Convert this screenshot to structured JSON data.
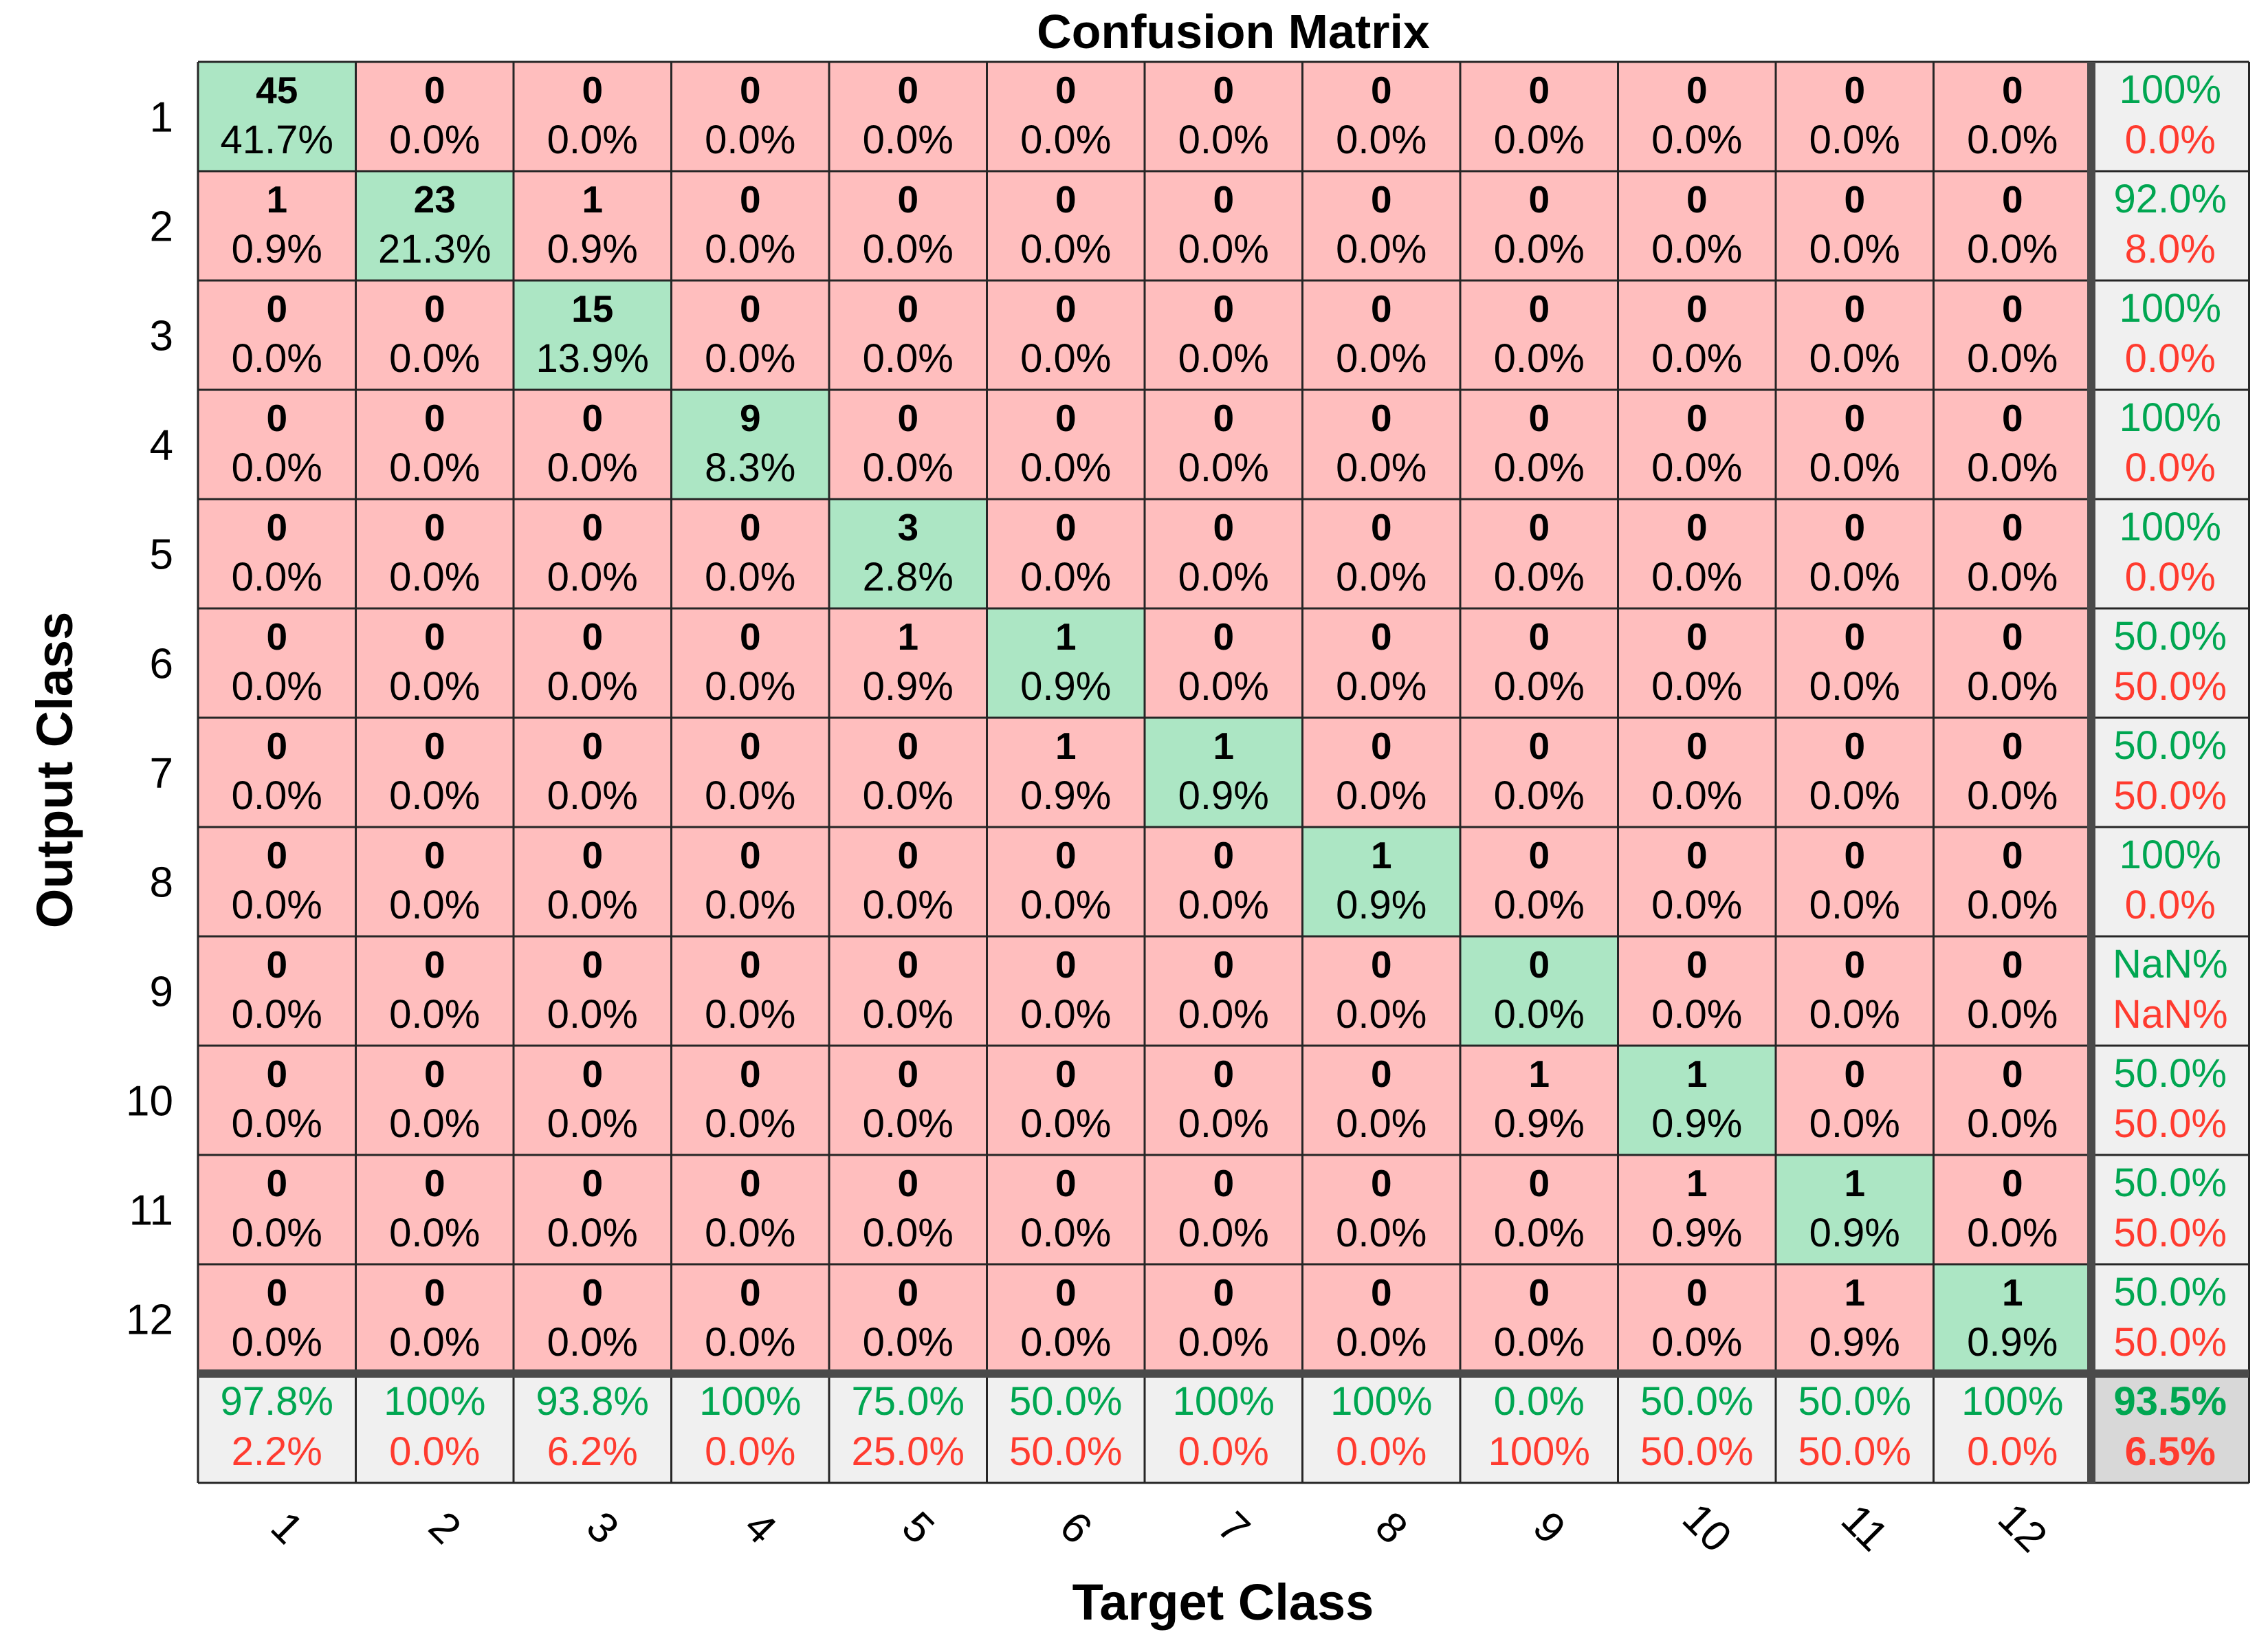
{
  "chart_data": {
    "type": "heatmap",
    "title": "Confusion Matrix",
    "xlabel": "Target Class",
    "ylabel": "Output Class",
    "row_labels": [
      "1",
      "2",
      "3",
      "4",
      "5",
      "6",
      "7",
      "8",
      "9",
      "10",
      "11",
      "12"
    ],
    "col_labels": [
      "1",
      "2",
      "3",
      "4",
      "5",
      "6",
      "7",
      "8",
      "9",
      "10",
      "11",
      "12"
    ],
    "counts": [
      [
        45,
        0,
        0,
        0,
        0,
        0,
        0,
        0,
        0,
        0,
        0,
        0
      ],
      [
        1,
        23,
        1,
        0,
        0,
        0,
        0,
        0,
        0,
        0,
        0,
        0
      ],
      [
        0,
        0,
        15,
        0,
        0,
        0,
        0,
        0,
        0,
        0,
        0,
        0
      ],
      [
        0,
        0,
        0,
        9,
        0,
        0,
        0,
        0,
        0,
        0,
        0,
        0
      ],
      [
        0,
        0,
        0,
        0,
        3,
        0,
        0,
        0,
        0,
        0,
        0,
        0
      ],
      [
        0,
        0,
        0,
        0,
        1,
        1,
        0,
        0,
        0,
        0,
        0,
        0
      ],
      [
        0,
        0,
        0,
        0,
        0,
        1,
        1,
        0,
        0,
        0,
        0,
        0
      ],
      [
        0,
        0,
        0,
        0,
        0,
        0,
        0,
        1,
        0,
        0,
        0,
        0
      ],
      [
        0,
        0,
        0,
        0,
        0,
        0,
        0,
        0,
        0,
        0,
        0,
        0
      ],
      [
        0,
        0,
        0,
        0,
        0,
        0,
        0,
        0,
        1,
        1,
        0,
        0
      ],
      [
        0,
        0,
        0,
        0,
        0,
        0,
        0,
        0,
        0,
        1,
        1,
        0
      ],
      [
        0,
        0,
        0,
        0,
        0,
        0,
        0,
        0,
        0,
        0,
        1,
        1
      ]
    ],
    "percents": [
      [
        "41.7%",
        "0.0%",
        "0.0%",
        "0.0%",
        "0.0%",
        "0.0%",
        "0.0%",
        "0.0%",
        "0.0%",
        "0.0%",
        "0.0%",
        "0.0%"
      ],
      [
        "0.9%",
        "21.3%",
        "0.9%",
        "0.0%",
        "0.0%",
        "0.0%",
        "0.0%",
        "0.0%",
        "0.0%",
        "0.0%",
        "0.0%",
        "0.0%"
      ],
      [
        "0.0%",
        "0.0%",
        "13.9%",
        "0.0%",
        "0.0%",
        "0.0%",
        "0.0%",
        "0.0%",
        "0.0%",
        "0.0%",
        "0.0%",
        "0.0%"
      ],
      [
        "0.0%",
        "0.0%",
        "0.0%",
        "8.3%",
        "0.0%",
        "0.0%",
        "0.0%",
        "0.0%",
        "0.0%",
        "0.0%",
        "0.0%",
        "0.0%"
      ],
      [
        "0.0%",
        "0.0%",
        "0.0%",
        "0.0%",
        "2.8%",
        "0.0%",
        "0.0%",
        "0.0%",
        "0.0%",
        "0.0%",
        "0.0%",
        "0.0%"
      ],
      [
        "0.0%",
        "0.0%",
        "0.0%",
        "0.0%",
        "0.9%",
        "0.9%",
        "0.0%",
        "0.0%",
        "0.0%",
        "0.0%",
        "0.0%",
        "0.0%"
      ],
      [
        "0.0%",
        "0.0%",
        "0.0%",
        "0.0%",
        "0.0%",
        "0.9%",
        "0.9%",
        "0.0%",
        "0.0%",
        "0.0%",
        "0.0%",
        "0.0%"
      ],
      [
        "0.0%",
        "0.0%",
        "0.0%",
        "0.0%",
        "0.0%",
        "0.0%",
        "0.0%",
        "0.9%",
        "0.0%",
        "0.0%",
        "0.0%",
        "0.0%"
      ],
      [
        "0.0%",
        "0.0%",
        "0.0%",
        "0.0%",
        "0.0%",
        "0.0%",
        "0.0%",
        "0.0%",
        "0.0%",
        "0.0%",
        "0.0%",
        "0.0%"
      ],
      [
        "0.0%",
        "0.0%",
        "0.0%",
        "0.0%",
        "0.0%",
        "0.0%",
        "0.0%",
        "0.0%",
        "0.9%",
        "0.9%",
        "0.0%",
        "0.0%"
      ],
      [
        "0.0%",
        "0.0%",
        "0.0%",
        "0.0%",
        "0.0%",
        "0.0%",
        "0.0%",
        "0.0%",
        "0.0%",
        "0.9%",
        "0.9%",
        "0.0%"
      ],
      [
        "0.0%",
        "0.0%",
        "0.0%",
        "0.0%",
        "0.0%",
        "0.0%",
        "0.0%",
        "0.0%",
        "0.0%",
        "0.0%",
        "0.9%",
        "0.9%"
      ]
    ],
    "row_summary": [
      {
        "correct": "100%",
        "error": "0.0%"
      },
      {
        "correct": "92.0%",
        "error": "8.0%"
      },
      {
        "correct": "100%",
        "error": "0.0%"
      },
      {
        "correct": "100%",
        "error": "0.0%"
      },
      {
        "correct": "100%",
        "error": "0.0%"
      },
      {
        "correct": "50.0%",
        "error": "50.0%"
      },
      {
        "correct": "50.0%",
        "error": "50.0%"
      },
      {
        "correct": "100%",
        "error": "0.0%"
      },
      {
        "correct": "NaN%",
        "error": "NaN%"
      },
      {
        "correct": "50.0%",
        "error": "50.0%"
      },
      {
        "correct": "50.0%",
        "error": "50.0%"
      },
      {
        "correct": "50.0%",
        "error": "50.0%"
      }
    ],
    "col_summary": [
      {
        "correct": "97.8%",
        "error": "2.2%"
      },
      {
        "correct": "100%",
        "error": "0.0%"
      },
      {
        "correct": "93.8%",
        "error": "6.2%"
      },
      {
        "correct": "100%",
        "error": "0.0%"
      },
      {
        "correct": "75.0%",
        "error": "25.0%"
      },
      {
        "correct": "50.0%",
        "error": "50.0%"
      },
      {
        "correct": "100%",
        "error": "0.0%"
      },
      {
        "correct": "100%",
        "error": "0.0%"
      },
      {
        "correct": "0.0%",
        "error": "100%"
      },
      {
        "correct": "50.0%",
        "error": "50.0%"
      },
      {
        "correct": "50.0%",
        "error": "50.0%"
      },
      {
        "correct": "100%",
        "error": "0.0%"
      }
    ],
    "overall": {
      "correct": "93.5%",
      "error": "6.5%"
    }
  },
  "colors": {
    "correct_cell": "#ace6c4",
    "error_cell": "#ffbebe",
    "summary_cell": "#f0f0f0",
    "overall_cell": "#d8d8d8",
    "correct_text": "#00a651",
    "error_text": "#ff3b2f",
    "text": "#000000",
    "grid": "#262626",
    "separator": "#4a4a4a"
  }
}
